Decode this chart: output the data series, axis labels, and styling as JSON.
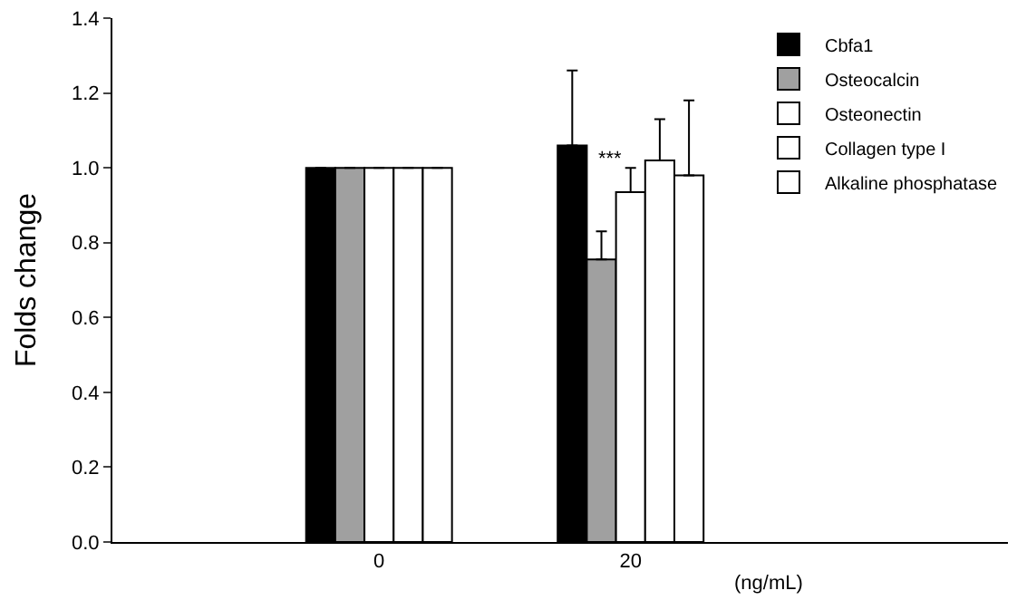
{
  "chart_data": {
    "type": "bar",
    "ylabel": "Folds change",
    "categories": [
      "0",
      "20"
    ],
    "series": [
      {
        "name": "Cbfa1",
        "color": "#000000",
        "values": [
          1.0,
          1.06
        ],
        "errors": [
          null,
          [
            1.06,
            1.26
          ]
        ]
      },
      {
        "name": "Osteocalcin",
        "color": "#a0a0a0",
        "values": [
          1.0,
          0.755
        ],
        "errors": [
          null,
          [
            0.755,
            0.83
          ]
        ]
      },
      {
        "name": "Osteonectin",
        "color": "#ffffff",
        "values": [
          1.0,
          0.935
        ],
        "errors": [
          null,
          [
            0.935,
            1.0
          ]
        ]
      },
      {
        "name": "Collagen type I",
        "color": "#ffffff",
        "values": [
          1.0,
          1.02
        ],
        "errors": [
          null,
          [
            1.02,
            1.13
          ]
        ]
      },
      {
        "name": "Alkaline phosphatase",
        "color": "#ffffff",
        "values": [
          1.0,
          0.98
        ],
        "errors": [
          null,
          [
            0.98,
            1.18
          ]
        ]
      }
    ],
    "annotations": [
      "***",
      "(ng/mL)"
    ],
    "ylim": [
      0,
      1.4
    ],
    "yticks": [
      {
        "value": 0,
        "label": "0.0"
      },
      0.2,
      0.4,
      0.6,
      0.8,
      {
        "value": 1,
        "label": "1.0"
      },
      1.2,
      1.4
    ],
    "legend": "top right"
  }
}
